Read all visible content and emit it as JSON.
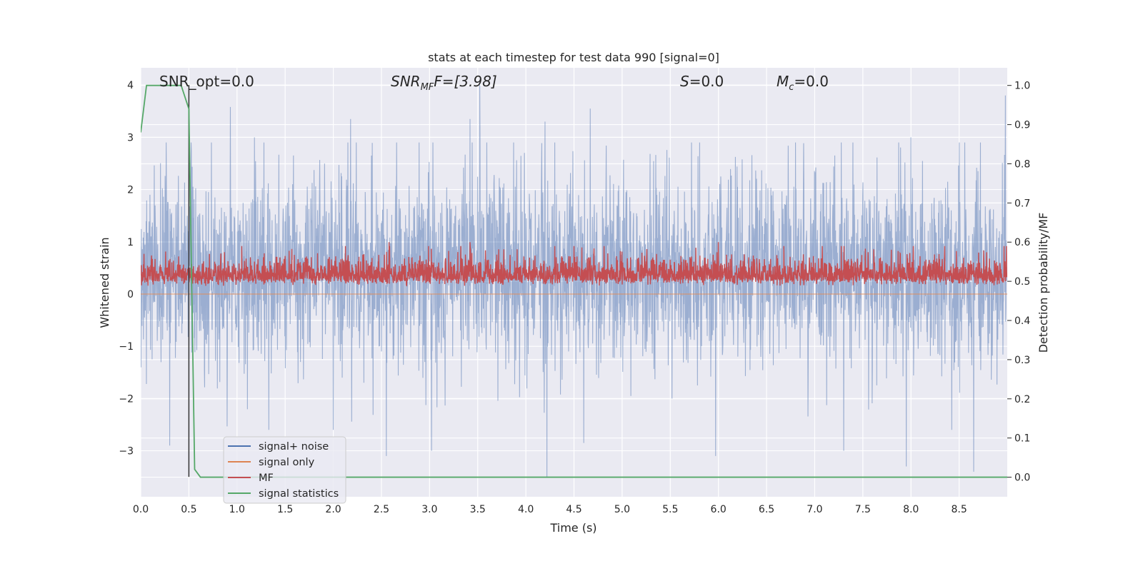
{
  "chart_data": {
    "type": "line",
    "title": "stats at each timestep for test data 990 [signal=0]",
    "xlabel": "Time (s)",
    "ylabel": "Whitened strain",
    "y2label": "Detection probability/MF",
    "xlim": [
      0.0,
      9.0
    ],
    "ylim": [
      -3.88,
      4.33
    ],
    "y2lim": [
      -0.05,
      1.045
    ],
    "x_ticks": [
      "0.0",
      "0.5",
      "1.0",
      "1.5",
      "2.0",
      "2.5",
      "3.0",
      "3.5",
      "4.0",
      "4.5",
      "5.0",
      "5.5",
      "6.0",
      "6.5",
      "7.0",
      "7.5",
      "8.0",
      "8.5"
    ],
    "y_ticks": [
      "4",
      "3",
      "2",
      "1",
      "0",
      "−1",
      "−2",
      "−3"
    ],
    "y2_ticks": [
      "1.0",
      "0.9",
      "0.8",
      "0.7",
      "0.6",
      "0.5",
      "0.4",
      "0.3",
      "0.2",
      "0.1",
      "0.0"
    ],
    "grid": true,
    "legend_position": "lower-left",
    "annotations": {
      "snr_opt": "SNR_opt=0.0",
      "snr_mf_base": "SNR",
      "snr_mf_sub": "MF",
      "snr_mf_rest": "F=[3.98]",
      "s_label": "S",
      "s_value": "=0.0",
      "mc_label": "M",
      "mc_sub": "c",
      "mc_value": "=0.0"
    },
    "series": [
      {
        "name": "signal+ noise",
        "axis": "left",
        "color": "#4c72b0",
        "description_values": {
          "min": -3.5,
          "max": 4.0,
          "typical_envelope": [
            -1.3,
            2.2
          ]
        },
        "peaks": [
          [
            0.93,
            3.58
          ],
          [
            1.18,
            3.0
          ],
          [
            2.18,
            3.35
          ],
          [
            3.42,
            3.35
          ],
          [
            3.52,
            4.0
          ],
          [
            4.2,
            3.3
          ],
          [
            4.67,
            3.55
          ],
          [
            8.0,
            3.0
          ],
          [
            8.98,
            3.8
          ]
        ],
        "troughs": [
          [
            0.3,
            -2.9
          ],
          [
            2.55,
            -3.1
          ],
          [
            3.02,
            -3.0
          ],
          [
            4.22,
            -3.5
          ],
          [
            4.6,
            -2.85
          ],
          [
            5.97,
            -3.1
          ],
          [
            7.3,
            -3.0
          ],
          [
            7.95,
            -3.3
          ],
          [
            8.65,
            -3.4
          ]
        ]
      },
      {
        "name": "signal only",
        "axis": "left",
        "color": "#dd8452",
        "x": [
          0.0,
          9.0
        ],
        "y": [
          0.0,
          0.0
        ]
      },
      {
        "name": "MF",
        "axis": "right",
        "color": "#c44e52",
        "description_values": {
          "baseline": 0.5,
          "typical_range": [
            0.47,
            0.58
          ],
          "max": 0.6
        },
        "peaks": [
          [
            1.05,
            0.59
          ],
          [
            2.58,
            0.6
          ],
          [
            3.42,
            0.6
          ],
          [
            4.5,
            0.59
          ],
          [
            6.0,
            0.6
          ],
          [
            8.35,
            0.59
          ]
        ]
      },
      {
        "name": "signal statistics",
        "axis": "right",
        "color": "#55a868",
        "x": [
          0.0,
          0.06,
          0.42,
          0.5,
          0.56,
          0.62,
          9.0
        ],
        "y": [
          0.88,
          1.0,
          1.0,
          0.94,
          0.02,
          0.0,
          0.0
        ]
      }
    ],
    "vertical_marker": {
      "x": 0.5,
      "y_from": -3.5,
      "y_to": 4.0,
      "color": "#333333"
    }
  },
  "legend": {
    "items": [
      {
        "label": "signal+ noise",
        "color": "#4c72b0"
      },
      {
        "label": "signal only",
        "color": "#dd8452"
      },
      {
        "label": "MF",
        "color": "#c44e52"
      },
      {
        "label": "signal statistics",
        "color": "#55a868"
      }
    ]
  },
  "style": {
    "plot_background": "#eaeaf2",
    "grid_color": "#ffffff"
  }
}
